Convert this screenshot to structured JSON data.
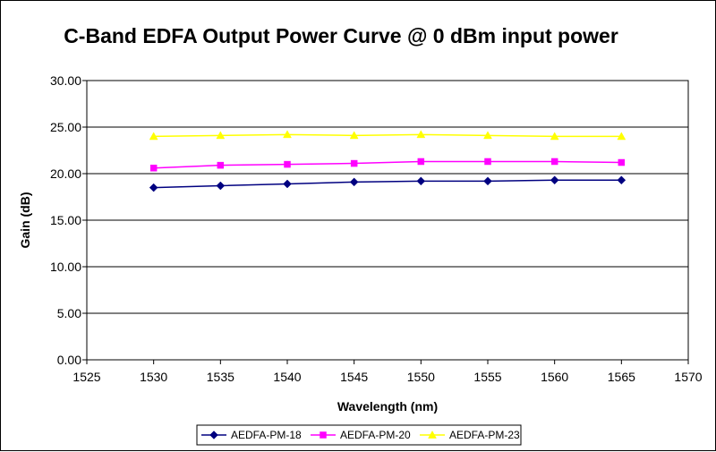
{
  "chart_data": {
    "type": "line",
    "title": "C-Band EDFA Output Power Curve @ 0 dBm input power",
    "xlabel": "Wavelength (nm)",
    "ylabel": "Gain (dB)",
    "xlim": [
      1525,
      1570
    ],
    "ylim": [
      0,
      30
    ],
    "x_ticks": [
      "1525",
      "1530",
      "1535",
      "1540",
      "1545",
      "1550",
      "1555",
      "1560",
      "1565",
      "1570"
    ],
    "y_ticks": [
      "0.00",
      "5.00",
      "10.00",
      "15.00",
      "20.00",
      "25.00",
      "30.00"
    ],
    "grid": "horizontal",
    "legend_position": "bottom",
    "x": [
      1530,
      1535,
      1540,
      1545,
      1550,
      1555,
      1560,
      1565
    ],
    "series": [
      {
        "name": "AEDFA-PM-18",
        "color": "#000080",
        "marker": "diamond",
        "values": [
          18.5,
          18.7,
          18.9,
          19.1,
          19.2,
          19.2,
          19.3,
          19.3
        ]
      },
      {
        "name": "AEDFA-PM-20",
        "color": "#FF00FF",
        "marker": "square",
        "values": [
          20.6,
          20.9,
          21.0,
          21.1,
          21.3,
          21.3,
          21.3,
          21.2
        ]
      },
      {
        "name": "AEDFA-PM-23",
        "color": "#FFFF00",
        "marker": "triangle",
        "values": [
          24.0,
          24.1,
          24.2,
          24.1,
          24.2,
          24.1,
          24.0,
          24.0
        ]
      }
    ]
  }
}
